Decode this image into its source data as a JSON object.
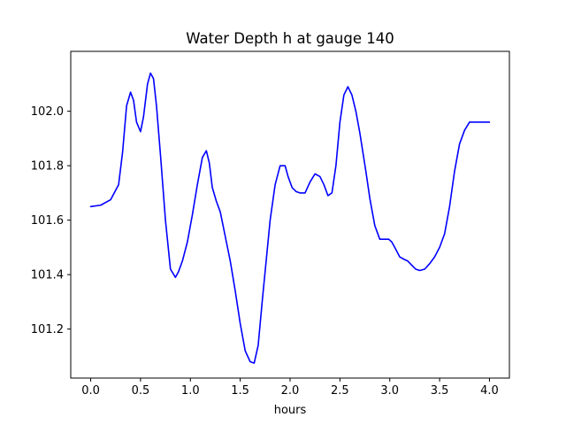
{
  "chart_data": {
    "type": "line",
    "title": "Water Depth h at gauge 140",
    "xlabel": "hours",
    "ylabel": "",
    "xlim": [
      -0.2,
      4.2
    ],
    "ylim": [
      101.02,
      102.22
    ],
    "xticks": [
      0.0,
      0.5,
      1.0,
      1.5,
      2.0,
      2.5,
      3.0,
      3.5,
      4.0
    ],
    "xtick_labels": [
      "0.0",
      "0.5",
      "1.0",
      "1.5",
      "2.0",
      "2.5",
      "3.0",
      "3.5",
      "4.0"
    ],
    "yticks": [
      101.2,
      101.4,
      101.6,
      101.8,
      102.0
    ],
    "ytick_labels": [
      "101.2",
      "101.4",
      "101.6",
      "101.8",
      "102.0"
    ],
    "grid": false,
    "series": [
      {
        "color": "#0000ff",
        "x": [
          0.0,
          0.1,
          0.2,
          0.28,
          0.32,
          0.36,
          0.4,
          0.43,
          0.46,
          0.5,
          0.53,
          0.57,
          0.6,
          0.63,
          0.66,
          0.7,
          0.75,
          0.8,
          0.85,
          0.88,
          0.92,
          0.97,
          1.02,
          1.07,
          1.12,
          1.16,
          1.19,
          1.22,
          1.26,
          1.3,
          1.35,
          1.4,
          1.45,
          1.5,
          1.55,
          1.6,
          1.64,
          1.68,
          1.72,
          1.76,
          1.8,
          1.85,
          1.9,
          1.95,
          1.98,
          2.02,
          2.06,
          2.1,
          2.15,
          2.2,
          2.25,
          2.3,
          2.34,
          2.38,
          2.42,
          2.46,
          2.5,
          2.54,
          2.58,
          2.62,
          2.66,
          2.7,
          2.73,
          2.76,
          2.8,
          2.85,
          2.9,
          2.95,
          2.99,
          3.02,
          3.05,
          3.1,
          3.15,
          3.18,
          3.22,
          3.26,
          3.3,
          3.35,
          3.4,
          3.45,
          3.5,
          3.55,
          3.6,
          3.65,
          3.7,
          3.75,
          3.8,
          3.85,
          3.9,
          3.95,
          4.0
        ],
        "y": [
          101.65,
          101.655,
          101.675,
          101.73,
          101.85,
          102.02,
          102.07,
          102.04,
          101.96,
          101.925,
          101.98,
          102.1,
          102.14,
          102.12,
          102.02,
          101.84,
          101.6,
          101.42,
          101.39,
          101.41,
          101.45,
          101.52,
          101.62,
          101.73,
          101.83,
          101.855,
          101.81,
          101.72,
          101.67,
          101.63,
          101.54,
          101.45,
          101.34,
          101.22,
          101.12,
          101.08,
          101.075,
          101.14,
          101.3,
          101.45,
          101.6,
          101.73,
          101.8,
          101.8,
          101.76,
          101.72,
          101.705,
          101.7,
          101.7,
          101.74,
          101.77,
          101.76,
          101.73,
          101.69,
          101.7,
          101.8,
          101.96,
          102.06,
          102.09,
          102.06,
          102.0,
          101.92,
          101.85,
          101.78,
          101.68,
          101.58,
          101.53,
          101.53,
          101.53,
          101.52,
          101.5,
          101.465,
          101.455,
          101.45,
          101.435,
          101.42,
          101.415,
          101.42,
          101.44,
          101.465,
          101.5,
          101.55,
          101.65,
          101.78,
          101.88,
          101.93,
          101.96,
          101.96,
          101.96,
          101.96,
          101.96
        ]
      }
    ]
  }
}
